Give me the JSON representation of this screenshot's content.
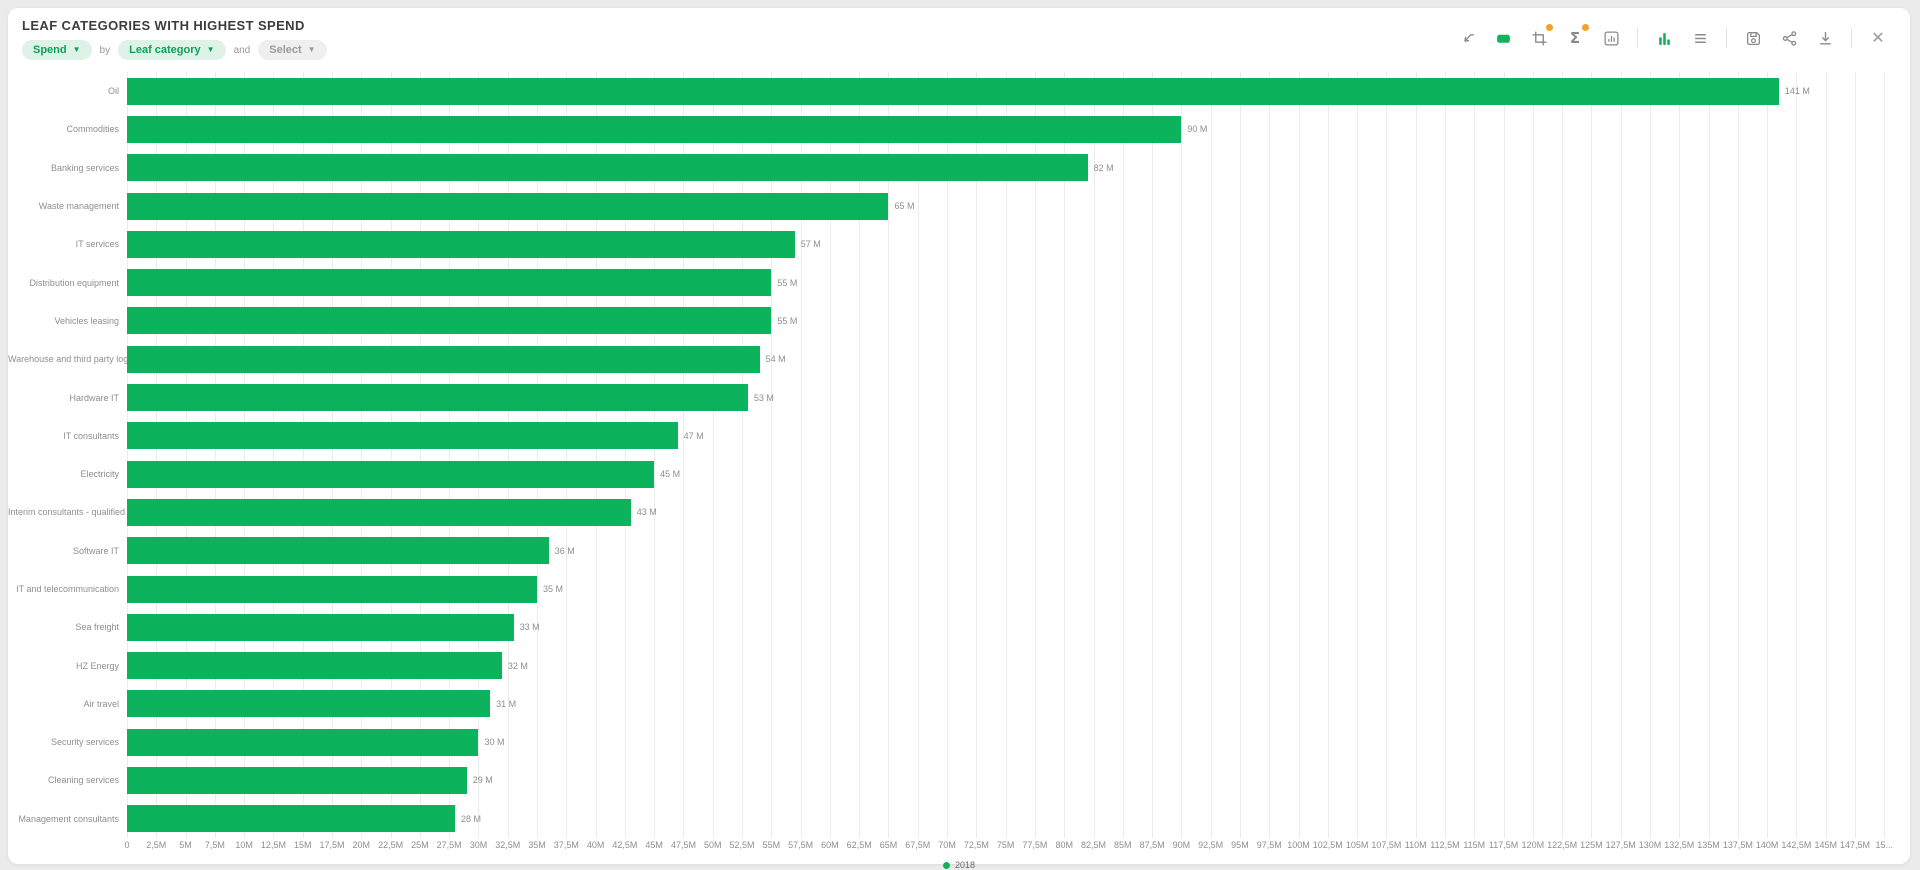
{
  "header": {
    "title": "LEAF CATEGORIES WITH HIGHEST SPEND"
  },
  "filters": {
    "measure_label": "Spend",
    "by_label": "by",
    "dimension_label": "Leaf category",
    "and_label": "and",
    "secondary_label": "Select"
  },
  "toolbar": {
    "icons": [
      "trend-arrow",
      "tag",
      "crop",
      "sum",
      "chart-box",
      "bar-chart-view",
      "list-view",
      "save",
      "share",
      "download",
      "close"
    ],
    "badged_icons": [
      "crop",
      "sum"
    ],
    "active_view": "bar-chart-view",
    "sum_glyph": "Σ",
    "close_glyph": "✕"
  },
  "legend": {
    "series_label": "2018"
  },
  "colors": {
    "bar_green": "#0db35c",
    "pill_green_bg": "#def2e7",
    "pill_green_text": "#0ca15a",
    "badge_orange": "#f0a329",
    "grid": "#ececec",
    "label_gray": "#8f8f8f"
  },
  "chart_data": {
    "type": "bar",
    "orientation": "horizontal",
    "title": "LEAF CATEGORIES WITH HIGHEST SPEND",
    "series_name": "2018",
    "categories": [
      "Oil",
      "Commodities",
      "Banking services",
      "Waste management",
      "IT services",
      "Distribution equipment",
      "Vehicles leasing",
      "Warehouse and third party logistics",
      "Hardware IT",
      "IT consultants",
      "Electricity",
      "Interim consultants - qualified",
      "Software IT",
      "IT and telecommunication",
      "Sea freight",
      "HZ Energy",
      "Air travel",
      "Security services",
      "Cleaning services",
      "Management consultants"
    ],
    "values": [
      141,
      90,
      82,
      65,
      57,
      55,
      55,
      54,
      53,
      47,
      45,
      43,
      36,
      35,
      33,
      32,
      31,
      30,
      29,
      28
    ],
    "value_labels": [
      "141 M",
      "90 M",
      "82 M",
      "65 M",
      "57 M",
      "55 M",
      "55 M",
      "54 M",
      "53 M",
      "47 M",
      "45 M",
      "43 M",
      "36 M",
      "35 M",
      "33 M",
      "32 M",
      "31 M",
      "30 M",
      "29 M",
      "28 M"
    ],
    "unit": "M",
    "xlabel": "",
    "ylabel": "",
    "xlim": [
      0,
      151
    ],
    "x_tick_values": [
      0,
      2.5,
      5,
      7.5,
      10,
      12.5,
      15,
      17.5,
      20,
      22.5,
      25,
      27.5,
      30,
      32.5,
      35,
      37.5,
      40,
      42.5,
      45,
      47.5,
      50,
      52.5,
      55,
      57.5,
      60,
      62.5,
      65,
      67.5,
      70,
      72.5,
      75,
      77.5,
      80,
      82.5,
      85,
      87.5,
      90,
      92.5,
      95,
      97.5,
      100,
      102.5,
      105,
      107.5,
      110,
      112.5,
      115,
      117.5,
      120,
      122.5,
      125,
      127.5,
      130,
      132.5,
      135,
      137.5,
      140,
      142.5,
      145,
      147.5,
      150
    ],
    "x_tick_labels": [
      "0",
      "2,5M",
      "5M",
      "7,5M",
      "10M",
      "12,5M",
      "15M",
      "17,5M",
      "20M",
      "22,5M",
      "25M",
      "27,5M",
      "30M",
      "32,5M",
      "35M",
      "37,5M",
      "40M",
      "42,5M",
      "45M",
      "47,5M",
      "50M",
      "52,5M",
      "55M",
      "57,5M",
      "60M",
      "62,5M",
      "65M",
      "67,5M",
      "70M",
      "72,5M",
      "75M",
      "77,5M",
      "80M",
      "82,5M",
      "85M",
      "87,5M",
      "90M",
      "92,5M",
      "95M",
      "97,5M",
      "100M",
      "102,5M",
      "105M",
      "107,5M",
      "110M",
      "112,5M",
      "115M",
      "117,5M",
      "120M",
      "122,5M",
      "125M",
      "127,5M",
      "130M",
      "132,5M",
      "135M",
      "137,5M",
      "140M",
      "142,5M",
      "145M",
      "147,5M",
      "15..."
    ],
    "grid": "vertical",
    "legend_position": "bottom-center"
  }
}
